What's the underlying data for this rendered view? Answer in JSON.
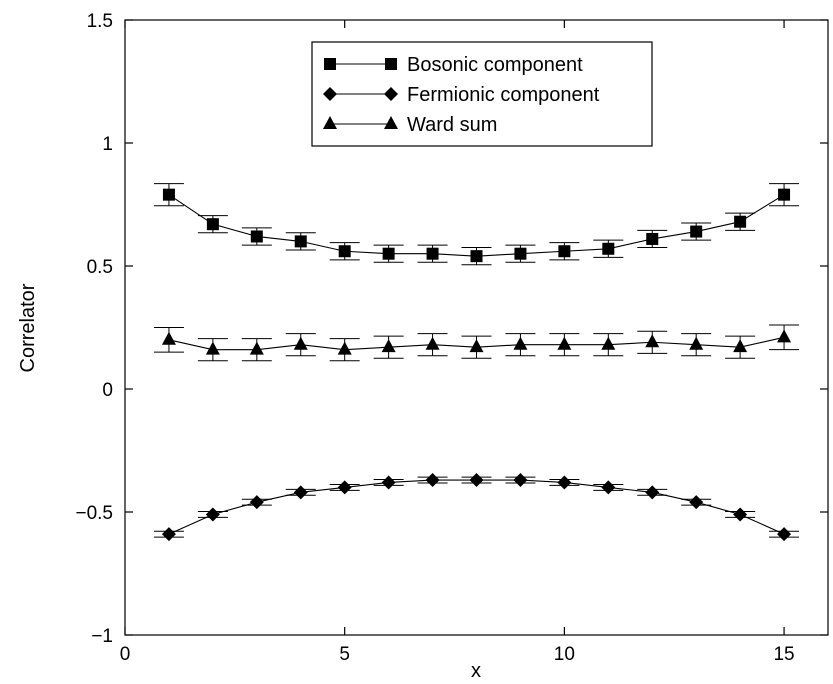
{
  "chart_data": {
    "type": "line",
    "xlabel": "x",
    "ylabel": "Correlator",
    "xlim": [
      0,
      16
    ],
    "ylim": [
      -1,
      1.5
    ],
    "x_ticks": [
      0,
      5,
      10,
      15
    ],
    "y_ticks": [
      -1,
      -0.5,
      0,
      0.5,
      1,
      1.5
    ],
    "y_tick_labels": [
      "−1",
      "−0.5",
      "0",
      "0.5",
      "1",
      "1.5"
    ],
    "legend_position": "top-center",
    "x": [
      1,
      2,
      3,
      4,
      5,
      6,
      7,
      8,
      9,
      10,
      11,
      12,
      13,
      14,
      15
    ],
    "series": [
      {
        "name": "Bosonic component",
        "marker": "square",
        "values": [
          0.79,
          0.67,
          0.62,
          0.6,
          0.56,
          0.55,
          0.55,
          0.54,
          0.55,
          0.56,
          0.57,
          0.61,
          0.64,
          0.68,
          0.79
        ],
        "errors": [
          0.045,
          0.035,
          0.035,
          0.035,
          0.035,
          0.035,
          0.035,
          0.035,
          0.035,
          0.035,
          0.035,
          0.035,
          0.035,
          0.035,
          0.045
        ]
      },
      {
        "name": "Fermionic component",
        "marker": "diamond",
        "values": [
          -0.59,
          -0.51,
          -0.46,
          -0.42,
          -0.4,
          -0.38,
          -0.37,
          -0.37,
          -0.37,
          -0.38,
          -0.4,
          -0.42,
          -0.46,
          -0.51,
          -0.59
        ],
        "errors": [
          0.012,
          0.012,
          0.012,
          0.012,
          0.012,
          0.012,
          0.012,
          0.012,
          0.012,
          0.012,
          0.012,
          0.012,
          0.012,
          0.012,
          0.012
        ]
      },
      {
        "name": "Ward sum",
        "marker": "triangle",
        "values": [
          0.2,
          0.16,
          0.16,
          0.18,
          0.16,
          0.17,
          0.18,
          0.17,
          0.18,
          0.18,
          0.18,
          0.19,
          0.18,
          0.17,
          0.21
        ],
        "errors": [
          0.05,
          0.045,
          0.045,
          0.045,
          0.045,
          0.045,
          0.045,
          0.045,
          0.045,
          0.045,
          0.045,
          0.045,
          0.045,
          0.045,
          0.05
        ]
      }
    ]
  }
}
